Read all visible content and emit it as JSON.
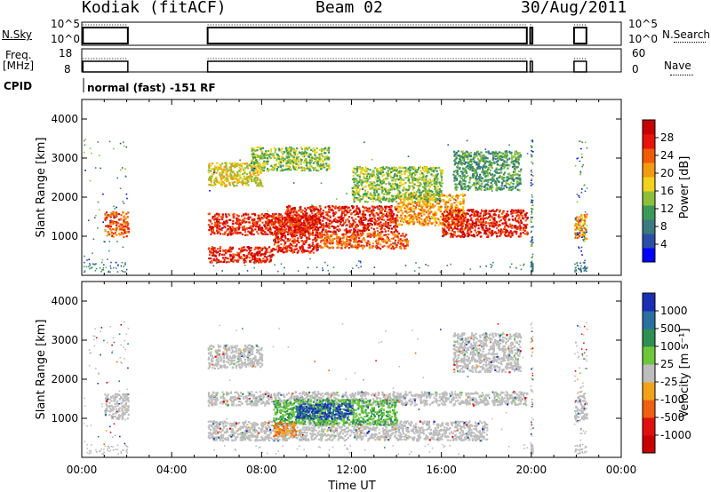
{
  "header": {
    "station": "Kodiak (fitACF)",
    "beam": "Beam 02",
    "date": "30/Aug/2011"
  },
  "panels": {
    "nsky_label": "N.Sky",
    "nsky_ticks": [
      "10^5",
      "10^0"
    ],
    "nsearch_label": "N.Search",
    "nsearch_ticks": [
      "10^5",
      "10^0"
    ],
    "freq_label_1": "Freq.",
    "freq_label_2": "[MHz]",
    "freq_ticks": [
      "18",
      "8"
    ],
    "nave_label": "Nave",
    "nave_ticks": [
      "60",
      "0"
    ],
    "cpid_label": "CPID",
    "cpid_value": "normal (fast) -151 RF"
  },
  "colors": {
    "power_scale": [
      "#0000ff",
      "#2b4fa8",
      "#3a7a80",
      "#3c9a58",
      "#8dbf3a",
      "#f2d21c",
      "#f49a10",
      "#f05a0a",
      "#e8140a",
      "#c80000"
    ],
    "velocity_scale": [
      "#1b2fb5",
      "#2b6fa0",
      "#2e8f52",
      "#6cc83a",
      "#bdbdbd",
      "#f2a21a",
      "#f06010",
      "#e01010",
      "#c80000"
    ],
    "ground_scatter": "#bdbdbd"
  },
  "chart_data": [
    {
      "type": "heatmap",
      "title": "",
      "ylabel": "Slant Range [km]",
      "xlabel": "Time UT",
      "x_ticks": [
        "00:00",
        "04:00",
        "08:00",
        "12:00",
        "16:00",
        "20:00",
        "00:00"
      ],
      "y_ticks": [
        "1000",
        "2000",
        "3000",
        "4000"
      ],
      "ylim": [
        0,
        4500
      ],
      "xlim_hours": [
        0,
        24
      ],
      "colorbar_label": "Power [dB]",
      "colorbar_ticks": [
        "4",
        "8",
        "12",
        "16",
        "20",
        "24",
        "28"
      ],
      "grid": false,
      "echo_bands": [
        {
          "t0": 1.0,
          "t1": 2.05,
          "r0": 1000,
          "r1": 1650,
          "level": 7
        },
        {
          "t0": 5.6,
          "t1": 9.0,
          "r0": 1050,
          "r1": 1600,
          "level": 8
        },
        {
          "t0": 5.6,
          "t1": 8.5,
          "r0": 350,
          "r1": 750,
          "level": 8
        },
        {
          "t0": 8.5,
          "t1": 10.5,
          "r0": 600,
          "r1": 1550,
          "level": 8
        },
        {
          "t0": 9.0,
          "t1": 14.0,
          "r0": 1100,
          "r1": 1800,
          "level": 8
        },
        {
          "t0": 10.5,
          "t1": 14.5,
          "r0": 700,
          "r1": 1100,
          "level": 7
        },
        {
          "t0": 14.0,
          "t1": 17.0,
          "r0": 1300,
          "r1": 2100,
          "level": 6
        },
        {
          "t0": 16.0,
          "t1": 19.8,
          "r0": 1000,
          "r1": 1700,
          "level": 8
        },
        {
          "t0": 5.6,
          "t1": 8.0,
          "r0": 2300,
          "r1": 2900,
          "level": 5
        },
        {
          "t0": 7.5,
          "t1": 11.0,
          "r0": 2700,
          "r1": 3300,
          "level": 4
        },
        {
          "t0": 12.0,
          "t1": 16.0,
          "r0": 1900,
          "r1": 2800,
          "level": 4
        },
        {
          "t0": 16.5,
          "t1": 19.5,
          "r0": 2200,
          "r1": 3200,
          "level": 3
        },
        {
          "t0": 21.9,
          "t1": 22.45,
          "r0": 950,
          "r1": 1600,
          "level": 6
        }
      ]
    },
    {
      "type": "heatmap",
      "title": "",
      "ylabel": "Slant Range [km]",
      "xlabel": "Time UT",
      "x_ticks": [
        "00:00",
        "04:00",
        "08:00",
        "12:00",
        "16:00",
        "20:00",
        "00:00"
      ],
      "y_ticks": [
        "1000",
        "2000",
        "3000",
        "4000"
      ],
      "ylim": [
        0,
        4500
      ],
      "xlim_hours": [
        0,
        24
      ],
      "colorbar_label": "Velocity [m s⁻¹]",
      "colorbar_ticks": [
        "1000",
        "500",
        "100",
        "25",
        "-25",
        "-100",
        "-500",
        "-1000"
      ],
      "grid": false,
      "echo_bands": [
        {
          "t0": 1.0,
          "t1": 2.05,
          "r0": 1000,
          "r1": 1650,
          "kind": "ground"
        },
        {
          "t0": 5.6,
          "t1": 19.8,
          "r0": 1350,
          "r1": 1700,
          "kind": "ground"
        },
        {
          "t0": 5.6,
          "t1": 18.0,
          "r0": 450,
          "r1": 950,
          "kind": "ground"
        },
        {
          "t0": 8.5,
          "t1": 14.0,
          "r0": 850,
          "r1": 1500,
          "kind": "green"
        },
        {
          "t0": 9.5,
          "t1": 12.0,
          "r0": 1000,
          "r1": 1400,
          "kind": "blue"
        },
        {
          "t0": 8.5,
          "t1": 9.5,
          "r0": 550,
          "r1": 900,
          "kind": "orange"
        },
        {
          "t0": 5.6,
          "t1": 8.0,
          "r0": 2300,
          "r1": 2900,
          "kind": "ground"
        },
        {
          "t0": 16.5,
          "t1": 19.5,
          "r0": 2200,
          "r1": 3200,
          "kind": "ground"
        },
        {
          "t0": 21.9,
          "t1": 22.45,
          "r0": 950,
          "r1": 1600,
          "kind": "ground"
        }
      ]
    }
  ]
}
